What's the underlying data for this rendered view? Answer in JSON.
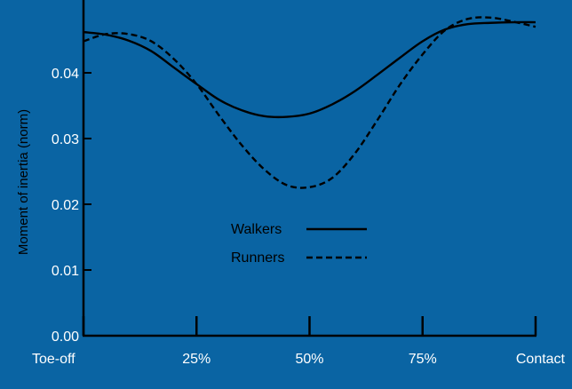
{
  "colors": {
    "background": "#0a64a3",
    "axis": "#000000",
    "line": "#000000",
    "tick_text": "#ffffff",
    "label_text": "#000000"
  },
  "chart_data": {
    "type": "line",
    "title": "",
    "xlabel": "",
    "ylabel": "Moment of inertia (norm)",
    "x_tick_labels": [
      "Toe-off",
      "25%",
      "50%",
      "75%",
      "Contact"
    ],
    "x": [
      0,
      5,
      10,
      15,
      20,
      25,
      30,
      35,
      40,
      45,
      50,
      55,
      60,
      65,
      70,
      75,
      80,
      85,
      90,
      95,
      100
    ],
    "xlim": [
      0,
      100
    ],
    "ylim": [
      0,
      0.05
    ],
    "y_ticks": [
      0.0,
      0.01,
      0.02,
      0.03,
      0.04
    ],
    "y_tick_labels": [
      "0.00",
      "0.01",
      "0.02",
      "0.03",
      "0.04"
    ],
    "grid": false,
    "legend_position": "center",
    "series": [
      {
        "name": "Walkers",
        "style": "solid",
        "values": [
          0.0462,
          0.0458,
          0.0449,
          0.0433,
          0.0408,
          0.0383,
          0.0359,
          0.0343,
          0.0334,
          0.0333,
          0.0338,
          0.0352,
          0.0372,
          0.0397,
          0.0423,
          0.0448,
          0.0466,
          0.0474,
          0.0476,
          0.0477,
          0.0477
        ]
      },
      {
        "name": "Runners",
        "style": "dashed",
        "values": [
          0.0448,
          0.0459,
          0.0459,
          0.0448,
          0.0421,
          0.0383,
          0.0335,
          0.029,
          0.0253,
          0.0229,
          0.0226,
          0.024,
          0.0277,
          0.0328,
          0.0382,
          0.0428,
          0.0465,
          0.0482,
          0.0484,
          0.0478,
          0.047
        ]
      }
    ]
  }
}
